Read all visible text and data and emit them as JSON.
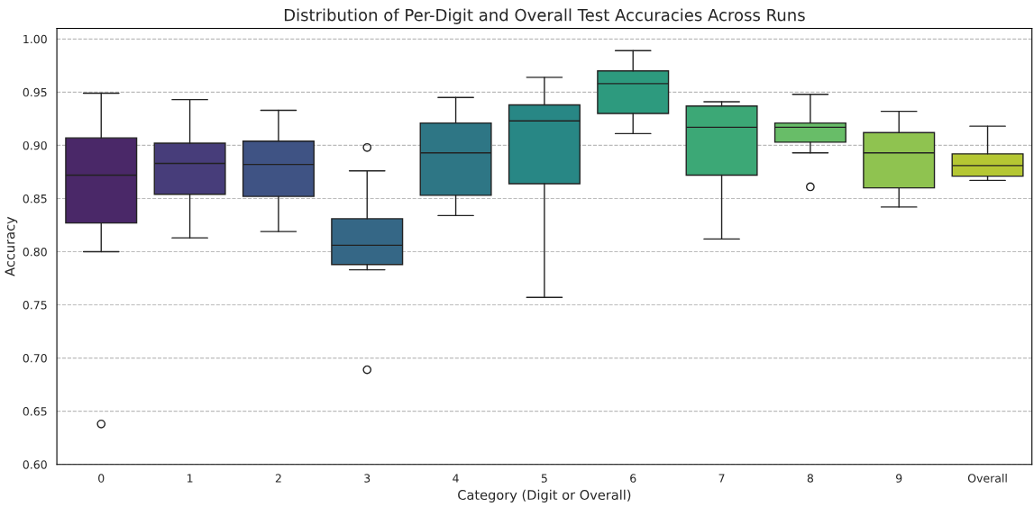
{
  "chart_data": {
    "type": "box",
    "title": "Distribution of Per-Digit and Overall Test Accuracies Across Runs",
    "xlabel": "Category (Digit or Overall)",
    "ylabel": "Accuracy",
    "categories": [
      "0",
      "1",
      "2",
      "3",
      "4",
      "5",
      "6",
      "7",
      "8",
      "9",
      "Overall"
    ],
    "colors": [
      "#4a2868",
      "#473d7a",
      "#3f5384",
      "#356786",
      "#2e7685",
      "#288785",
      "#2d9a7e",
      "#3ca876",
      "#68bd68",
      "#8fc350",
      "#b5c733"
    ],
    "boxes": [
      {
        "low": 0.8,
        "q1": 0.827,
        "median": 0.872,
        "q3": 0.907,
        "high": 0.949,
        "outliers": [
          0.638
        ]
      },
      {
        "low": 0.813,
        "q1": 0.854,
        "median": 0.883,
        "q3": 0.902,
        "high": 0.943
      },
      {
        "low": 0.819,
        "q1": 0.852,
        "median": 0.882,
        "q3": 0.904,
        "high": 0.933
      },
      {
        "low": 0.783,
        "q1": 0.788,
        "median": 0.806,
        "q3": 0.831,
        "high": 0.876,
        "outliers": [
          0.898,
          0.689
        ]
      },
      {
        "low": 0.834,
        "q1": 0.853,
        "median": 0.893,
        "q3": 0.921,
        "high": 0.945
      },
      {
        "low": 0.757,
        "q1": 0.864,
        "median": 0.923,
        "q3": 0.938,
        "high": 0.964
      },
      {
        "low": 0.911,
        "q1": 0.93,
        "median": 0.958,
        "q3": 0.97,
        "high": 0.989
      },
      {
        "low": 0.812,
        "q1": 0.872,
        "median": 0.917,
        "q3": 0.937,
        "high": 0.941
      },
      {
        "low": 0.893,
        "q1": 0.903,
        "median": 0.917,
        "q3": 0.921,
        "high": 0.948,
        "outliers": [
          0.861
        ]
      },
      {
        "low": 0.842,
        "q1": 0.86,
        "median": 0.893,
        "q3": 0.912,
        "high": 0.932
      },
      {
        "low": 0.867,
        "q1": 0.871,
        "median": 0.881,
        "q3": 0.892,
        "high": 0.918
      }
    ],
    "ylim": [
      0.6,
      1.01
    ],
    "yticks": [
      {
        "value": 0.6,
        "label": "0.60"
      },
      {
        "value": 0.65,
        "label": "0.65"
      },
      {
        "value": 0.7,
        "label": "0.70"
      },
      {
        "value": 0.75,
        "label": "0.75"
      },
      {
        "value": 0.8,
        "label": "0.80"
      },
      {
        "value": 0.85,
        "label": "0.85"
      },
      {
        "value": 0.9,
        "label": "0.90"
      },
      {
        "value": 0.95,
        "label": "0.95"
      },
      {
        "value": 1.0,
        "label": "1.00"
      }
    ],
    "grid": "y",
    "legend": false
  }
}
